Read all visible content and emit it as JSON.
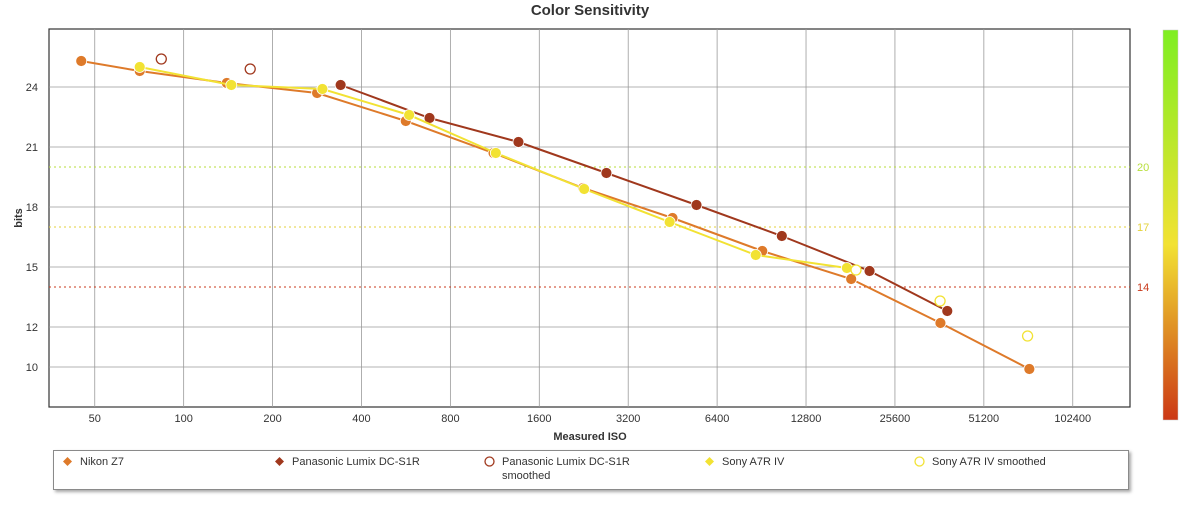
{
  "chart_data": {
    "type": "line",
    "title": "Color Sensitivity",
    "xlabel": "Measured ISO",
    "ylabel": "bits",
    "x_scale": "log2",
    "x_ticks": [
      50,
      100,
      200,
      400,
      800,
      1600,
      3200,
      6400,
      12800,
      25600,
      51200,
      102400
    ],
    "y_ticks_left": [
      10,
      12,
      15,
      18,
      21,
      24
    ],
    "y_ticks_right": [
      14,
      17,
      20
    ],
    "xlim": [
      35,
      160000
    ],
    "ylim": [
      8,
      26.9
    ],
    "grid": true,
    "legend_position": "bottom",
    "reference_lines": [
      {
        "value": 20,
        "label": "20",
        "color": "#b7de3a"
      },
      {
        "value": 17,
        "label": "17",
        "color": "#e3d23a"
      },
      {
        "value": 14,
        "label": "14",
        "color": "#c9391b"
      }
    ],
    "color_scale": {
      "top": "#7fee22",
      "middle": "#f2e233",
      "bottom": "#cc3815"
    },
    "series": [
      {
        "name": "Nikon Z7",
        "color": "#de7a2a",
        "marker": "filled",
        "x": [
          45,
          71,
          140,
          283,
          565,
          1120,
          2250,
          4520,
          9100,
          18200,
          36500,
          73000
        ],
        "y": [
          25.3,
          24.8,
          24.2,
          23.7,
          22.3,
          20.7,
          18.95,
          17.45,
          15.8,
          14.4,
          12.2,
          9.9
        ]
      },
      {
        "name": "Panasonic Lumix DC-S1R",
        "color": "#a0381d",
        "marker": "filled",
        "x": [
          340,
          680,
          1360,
          2700,
          5450,
          10600,
          21000,
          38500
        ],
        "y": [
          24.1,
          22.45,
          21.25,
          19.7,
          18.1,
          16.55,
          14.8,
          12.8
        ]
      },
      {
        "name": "Panasonic Lumix DC-S1R smoothed",
        "color": "#a0381d",
        "marker": "hollow",
        "x": [
          84,
          168
        ],
        "y": [
          25.4,
          24.9
        ]
      },
      {
        "name": "Sony A7R IV",
        "color": "#f2e233",
        "marker": "filled",
        "x": [
          71,
          145,
          295,
          580,
          1140,
          2270,
          4420,
          8650,
          17600
        ],
        "y": [
          25.0,
          24.1,
          23.9,
          22.6,
          20.7,
          18.9,
          17.25,
          15.6,
          14.95
        ]
      },
      {
        "name": "Sony A7R IV smoothed",
        "color": "#f2e233",
        "marker": "hollow",
        "x": [
          18900,
          36400,
          72000
        ],
        "y": [
          14.85,
          13.3,
          11.55
        ]
      }
    ]
  }
}
